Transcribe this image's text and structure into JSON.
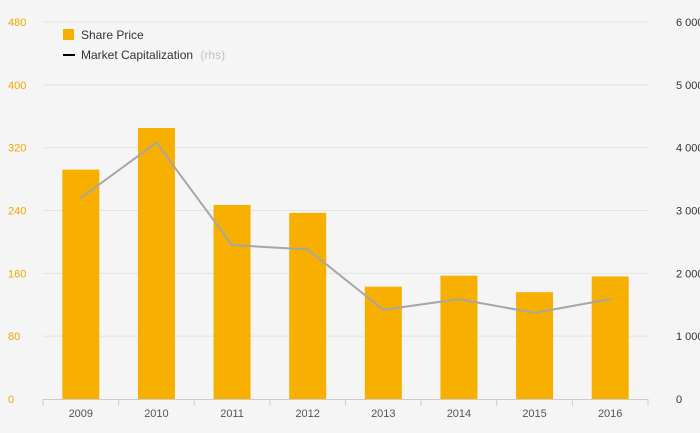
{
  "chart_data": {
    "type": "bar",
    "categories": [
      "2009",
      "2010",
      "2011",
      "2012",
      "2013",
      "2014",
      "2015",
      "2016"
    ],
    "series": [
      {
        "name": "Share Price",
        "type": "bar",
        "axis": "left",
        "values": [
          292,
          345,
          247,
          237,
          143,
          157,
          136,
          156
        ]
      },
      {
        "name": "Market Capitalization",
        "type": "line",
        "axis": "right",
        "values": [
          3200,
          4080,
          2450,
          2380,
          1420,
          1590,
          1370,
          1590
        ]
      }
    ],
    "legend": {
      "items": [
        {
          "label": "Share Price",
          "suffix": ""
        },
        {
          "label": "Market Capitalization",
          "suffix": "(rhs)"
        }
      ],
      "position": "top-left"
    },
    "y_left": {
      "ticks": [
        "0",
        "80",
        "160",
        "240",
        "320",
        "400",
        "480"
      ],
      "ylim": [
        0,
        480
      ]
    },
    "y_right": {
      "ticks": [
        "0",
        "1 000",
        "2 000",
        "3 000",
        "4 000",
        "5 000",
        "6 000"
      ],
      "ylim": [
        0,
        6000
      ]
    },
    "grid": true,
    "colors": {
      "bar": "#f8b000",
      "line": "#a6a6a6",
      "legend_line": "#000000",
      "left_axis_text": "#f0a800",
      "right_axis_text": "#333333",
      "grid": "#e3e3e3",
      "background": "#f5f5f5"
    }
  }
}
